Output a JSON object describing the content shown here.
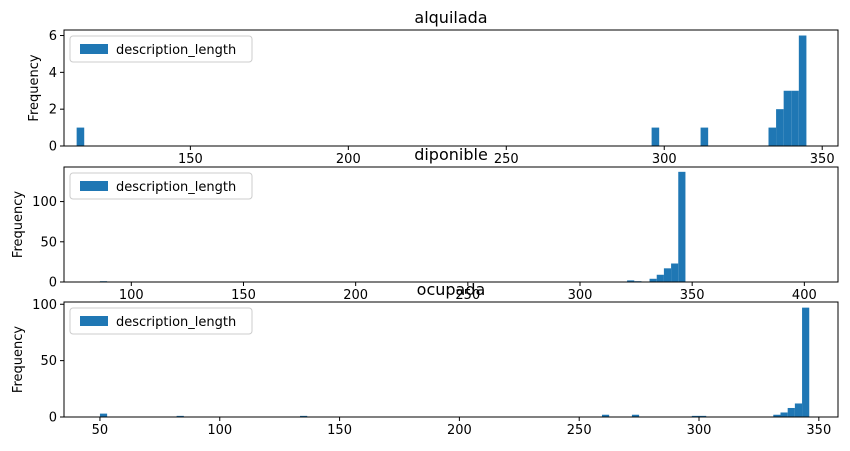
{
  "chart_data": [
    {
      "type": "bar",
      "title": "alquilada",
      "ylabel": "Frequency",
      "xlabel": "",
      "xlim": [
        110,
        355
      ],
      "ylim": [
        0,
        6.3
      ],
      "xticks": [
        150,
        200,
        250,
        300,
        350
      ],
      "yticks": [
        0,
        2,
        4,
        6
      ],
      "bin_width": 2.4,
      "grid": false,
      "legend": {
        "position": "top-left",
        "label": "description_length"
      },
      "series": [
        {
          "name": "description_length",
          "bins": [
            {
              "x": 114.0,
              "count": 1
            },
            {
              "x": 296.0,
              "count": 1
            },
            {
              "x": 311.5,
              "count": 1
            },
            {
              "x": 333.0,
              "count": 1
            },
            {
              "x": 335.4,
              "count": 2
            },
            {
              "x": 337.8,
              "count": 3
            },
            {
              "x": 340.2,
              "count": 3
            },
            {
              "x": 342.6,
              "count": 6
            }
          ]
        }
      ]
    },
    {
      "type": "bar",
      "title": "diponible",
      "ylabel": "Frequency",
      "xlabel": "",
      "xlim": [
        70,
        415
      ],
      "ylim": [
        0,
        143
      ],
      "xticks": [
        100,
        150,
        200,
        250,
        300,
        350,
        400
      ],
      "yticks": [
        0,
        50,
        100
      ],
      "bin_width": 3.2,
      "grid": false,
      "legend": {
        "position": "top-left",
        "label": "description_length"
      },
      "series": [
        {
          "name": "description_length",
          "bins": [
            {
              "x": 86.0,
              "count": 1
            },
            {
              "x": 321.0,
              "count": 2
            },
            {
              "x": 324.2,
              "count": 1
            },
            {
              "x": 331.0,
              "count": 4
            },
            {
              "x": 334.2,
              "count": 9
            },
            {
              "x": 337.4,
              "count": 17
            },
            {
              "x": 340.6,
              "count": 23
            },
            {
              "x": 343.8,
              "count": 137
            }
          ]
        }
      ]
    },
    {
      "type": "bar",
      "title": "ocupada",
      "ylabel": "Frequency",
      "xlabel": "",
      "xlim": [
        35,
        358
      ],
      "ylim": [
        0,
        102
      ],
      "xticks": [
        50,
        100,
        150,
        200,
        250,
        300,
        350
      ],
      "yticks": [
        0,
        50,
        100
      ],
      "bin_width": 3.0,
      "grid": false,
      "legend": {
        "position": "top-left",
        "label": "description_length"
      },
      "series": [
        {
          "name": "description_length",
          "bins": [
            {
              "x": 50.0,
              "count": 3
            },
            {
              "x": 82.0,
              "count": 1
            },
            {
              "x": 133.5,
              "count": 1
            },
            {
              "x": 259.5,
              "count": 2
            },
            {
              "x": 272.0,
              "count": 2
            },
            {
              "x": 297.0,
              "count": 1
            },
            {
              "x": 300.0,
              "count": 1
            },
            {
              "x": 331.0,
              "count": 2
            },
            {
              "x": 334.0,
              "count": 4
            },
            {
              "x": 337.0,
              "count": 8
            },
            {
              "x": 340.0,
              "count": 12
            },
            {
              "x": 343.0,
              "count": 97
            }
          ]
        }
      ]
    }
  ],
  "colors": {
    "bar": "#1f77b4",
    "axes": "#000000",
    "legend_border": "#cccccc"
  }
}
